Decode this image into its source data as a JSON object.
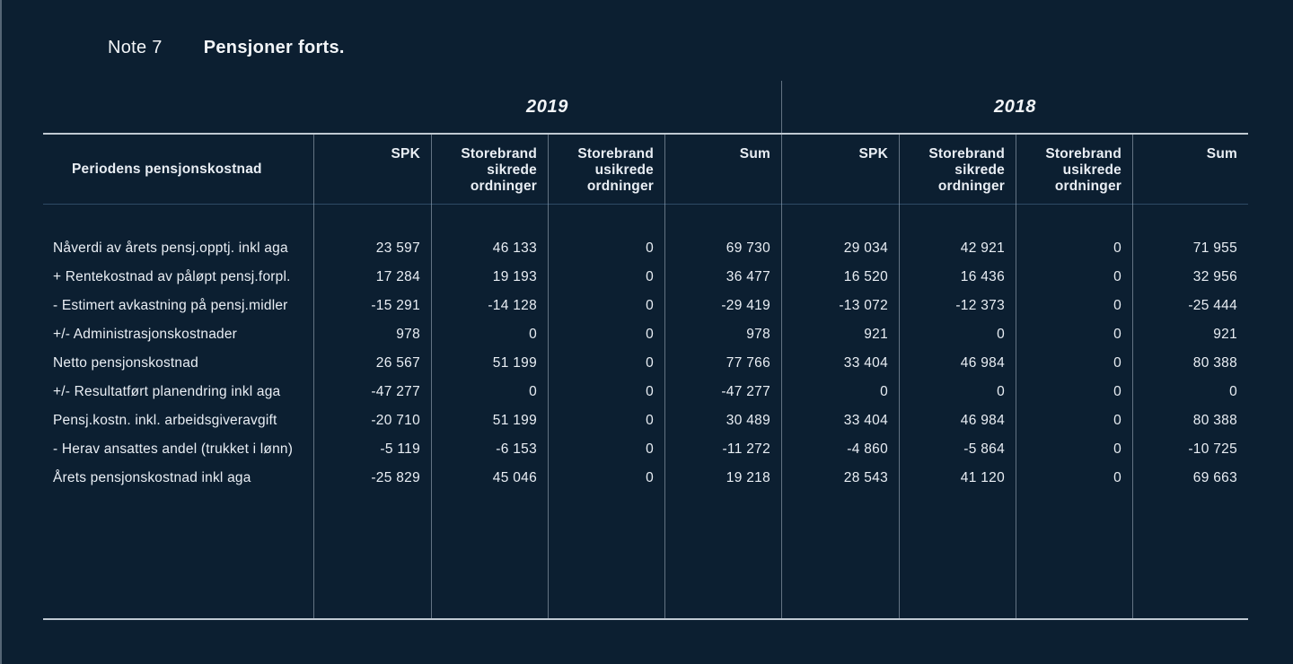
{
  "title": {
    "note_label": "Note 7",
    "note_name": "Pensjoner forts."
  },
  "years": [
    "2019",
    "2018"
  ],
  "table": {
    "row_header_label": "Periodens pensjonskostnad",
    "column_headers": [
      "SPK",
      "Storebrand sikrede ordninger",
      "Storebrand usikrede ordninger",
      "Sum",
      "SPK",
      "Storebrand sikrede ordninger",
      "Storebrand usikrede ordninger",
      "Sum"
    ],
    "rows": [
      {
        "label": "Nåverdi av årets pensj.opptj. inkl aga",
        "values": [
          "23 597",
          "46 133",
          "0",
          "69 730",
          "29 034",
          "42 921",
          "0",
          "71 955"
        ]
      },
      {
        "label": "+ Rentekostnad av påløpt pensj.forpl.",
        "values": [
          "17 284",
          "19 193",
          "0",
          "36 477",
          "16 520",
          "16 436",
          "0",
          "32 956"
        ]
      },
      {
        "label": "- Estimert avkastning på pensj.midler",
        "values": [
          "-15 291",
          "-14 128",
          "0",
          "-29 419",
          "-13 072",
          "-12 373",
          "0",
          "-25 444"
        ]
      },
      {
        "label": "+/- Administrasjonskostnader",
        "values": [
          "978",
          "0",
          "0",
          "978",
          "921",
          "0",
          "0",
          "921"
        ]
      },
      {
        "label": "Netto pensjonskostnad",
        "values": [
          "26 567",
          "51 199",
          "0",
          "77 766",
          "33 404",
          "46 984",
          "0",
          "80 388"
        ]
      },
      {
        "label": "+/- Resultatført planendring inkl aga",
        "values": [
          "-47 277",
          "0",
          "0",
          "-47 277",
          "0",
          "0",
          "0",
          "0"
        ]
      },
      {
        "label": "Pensj.kostn. inkl. arbeidsgiveravgift",
        "values": [
          "-20 710",
          "51 199",
          "0",
          "30 489",
          "33 404",
          "46 984",
          "0",
          "80 388"
        ]
      },
      {
        "label": "- Herav ansattes andel (trukket i lønn)",
        "values": [
          "-5 119",
          "-6 153",
          "0",
          "-11 272",
          "-4 860",
          "-5 864",
          "0",
          "-10 725"
        ]
      },
      {
        "label": "Årets pensjonskostnad inkl aga",
        "values": [
          "-25 829",
          "45 046",
          "0",
          "19 218",
          "28 543",
          "41 120",
          "0",
          "69 663"
        ]
      }
    ]
  },
  "colors": {
    "background": "#0c1f31",
    "text": "#e9eef4",
    "rule_strong": "#dde5ed",
    "rule_soft": "#76a5d2",
    "separator": "#bac7d5"
  }
}
